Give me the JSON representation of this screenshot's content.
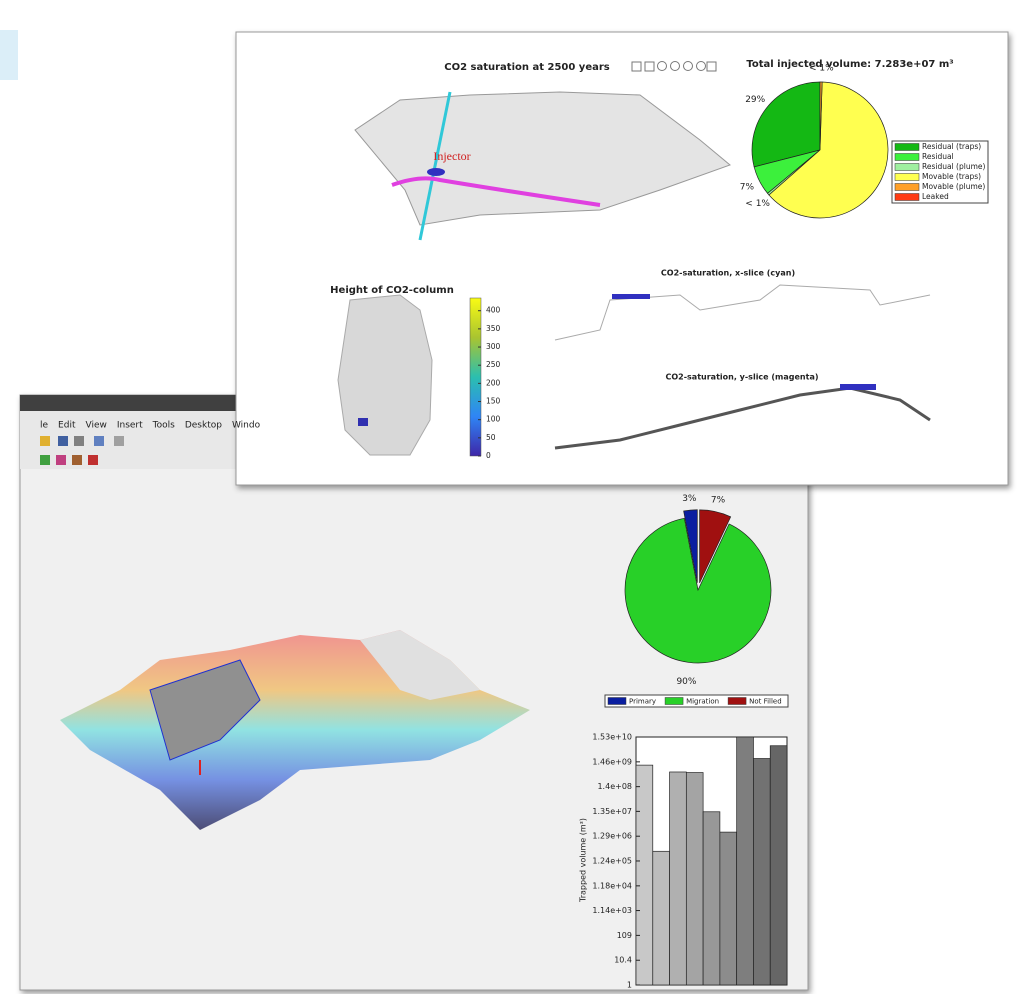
{
  "back_window": {
    "menu": [
      "le",
      "Edit",
      "View",
      "Insert",
      "Tools",
      "Desktop",
      "Windo"
    ]
  },
  "front_window": {
    "map_title": "CO2 saturation at 2500 years",
    "annotation": "Injector",
    "x_slice_title": "CO2-saturation, x-slice (cyan)",
    "y_slice_title": "CO2-saturation, y-slice (magenta)"
  },
  "chart_data": [
    {
      "type": "pie",
      "title": "Total injected volume: 7.283e+07 m³",
      "categories": [
        "Residual (traps)",
        "Residual",
        "Residual (plume)",
        "Movable (traps)",
        "Movable (plume)",
        "Leaked"
      ],
      "values": [
        29,
        7,
        0.5,
        63,
        0.5,
        0
      ],
      "value_labels": [
        "29%",
        "7%",
        "< 1%",
        null,
        "< 1%",
        null
      ],
      "colors": [
        "#14b814",
        "#3cf03c",
        "#a0f0a0",
        "#ffff50",
        "#ffa028",
        "#ff3c14"
      ],
      "explode": [
        false,
        false,
        false,
        false,
        false,
        false
      ],
      "legend": "right"
    },
    {
      "type": "colorbar",
      "title": "Height of CO2-column",
      "ylim": [
        0,
        435
      ],
      "yticks": [
        0,
        50,
        100,
        150,
        200,
        250,
        300,
        350,
        400
      ]
    },
    {
      "type": "pie",
      "categories": [
        "Primary",
        "Migration",
        "Not Filled"
      ],
      "values": [
        3,
        90,
        7
      ],
      "value_labels": [
        "3%",
        "90%",
        "7%"
      ],
      "colors": [
        "#0a1ea0",
        "#28d028",
        "#a01010"
      ],
      "explode": [
        true,
        false,
        true
      ],
      "legend": "bottom"
    },
    {
      "type": "bar",
      "ylabel": "Trapped volume (m³)",
      "log": true,
      "categories": [
        null,
        null,
        null,
        null,
        null,
        null,
        null,
        null,
        null
      ],
      "values": [
        1070000000,
        310000,
        560000000,
        530000000,
        13000000,
        1900000,
        15300000000,
        2000000000,
        6700000000
      ],
      "colors": [
        "#c8c8c8",
        "#bcbcbc",
        "#b0b0b0",
        "#a4a4a4",
        "#989898",
        "#8c8c8c",
        "#7e7e7e",
        "#727272",
        "#666666"
      ],
      "ylim": [
        1,
        15300000000
      ],
      "yticks": [
        1,
        10.4,
        109,
        {
          "value": 1140,
          "label": "1.14e+03"
        },
        {
          "value": 11800,
          "label": "1.18e+04"
        },
        {
          "value": 124000,
          "label": "1.24e+05"
        },
        {
          "value": 1290000,
          "label": "1.29e+06"
        },
        {
          "value": 13500000,
          "label": "1.35e+07"
        },
        {
          "value": 140000000,
          "label": "1.4e+08"
        },
        {
          "value": 1460000000,
          "label": "1.46e+09"
        },
        {
          "value": 15300000000,
          "label": "1.53e+10"
        }
      ]
    }
  ]
}
